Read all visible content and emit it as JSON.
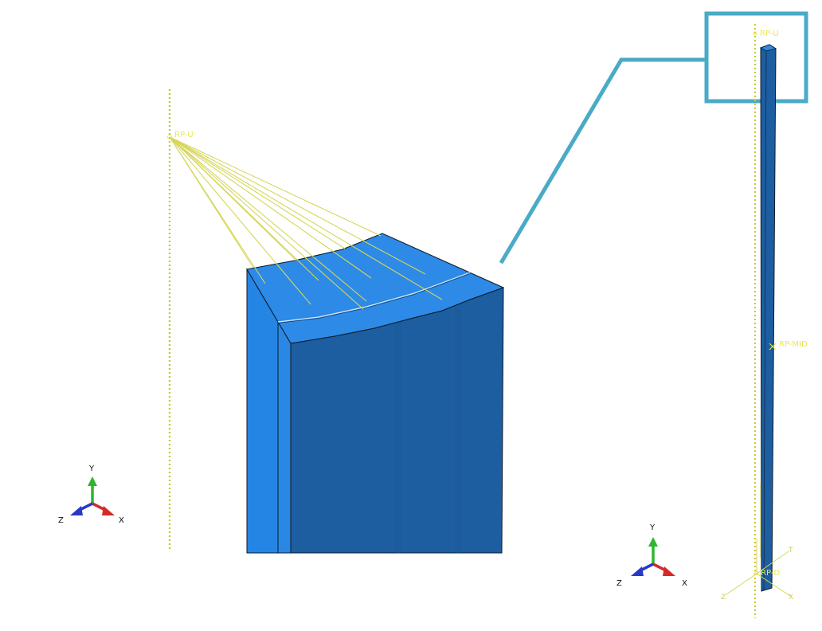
{
  "colors": {
    "background": "#ffffff",
    "face_light": "#2585e4",
    "face_dark": "#1d5ea0",
    "face_top": "#2d8ae6",
    "edge": "#0c1a2a",
    "coupling_lines": "#d6d65a",
    "dotted_axis": "#c9c935",
    "rp_label": "#e8e85a",
    "callout": "#4aabc6",
    "triad_x": "#d42a2a",
    "triad_y": "#2fb52f",
    "triad_z": "#2a3ac4"
  },
  "labels": {
    "rp_u_detail": "RP-U",
    "rp_u_overview": "RP-U",
    "rp_mid": "RP-MID",
    "rp_bottom": "RP-D"
  },
  "small_axis_labels": {
    "t": "T",
    "z": "Z",
    "x": "X"
  },
  "triad_left": {
    "x": "X",
    "y": "Y",
    "z": "Z"
  },
  "triad_right": {
    "x": "X",
    "y": "Y",
    "z": "Z"
  }
}
